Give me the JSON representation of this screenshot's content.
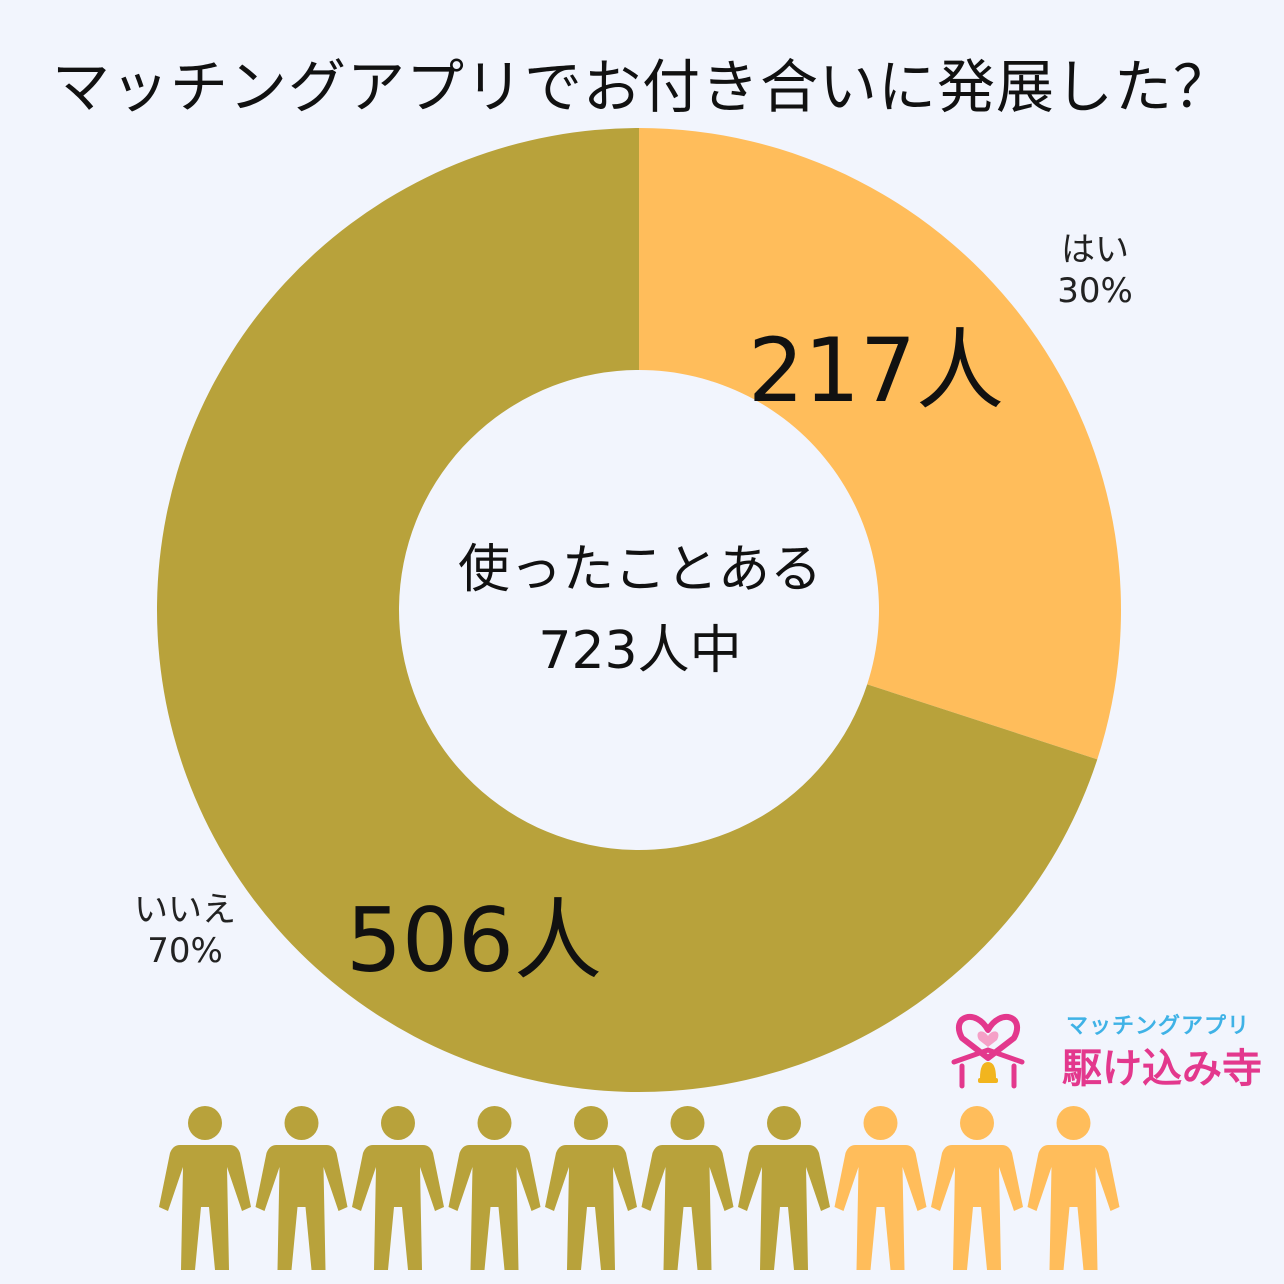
{
  "title": "マッチングアプリでお付き合いに発展した？",
  "center": {
    "line1": "使ったことある",
    "line2": "723人中"
  },
  "logo": {
    "small": "マッチングアプリ",
    "big": "駆け込み寺"
  },
  "colors": {
    "yes": "#ffbd5b",
    "no": "#b8a23b",
    "background": "#f2f5fd",
    "logo_pink": "#e3388d",
    "logo_blue": "#3fb2e6"
  },
  "chart_data": {
    "type": "pie",
    "donut": true,
    "total": 723,
    "slices": [
      {
        "label": "はい",
        "percent_label": "30%",
        "value": 217,
        "count_label": "217人",
        "percent": 30,
        "color": "#ffbd5b"
      },
      {
        "label": "いいえ",
        "percent_label": "70%",
        "value": 506,
        "count_label": "506人",
        "percent": 70,
        "color": "#b8a23b"
      }
    ],
    "pictogram": {
      "count": 10,
      "no": 7,
      "yes": 3
    }
  }
}
